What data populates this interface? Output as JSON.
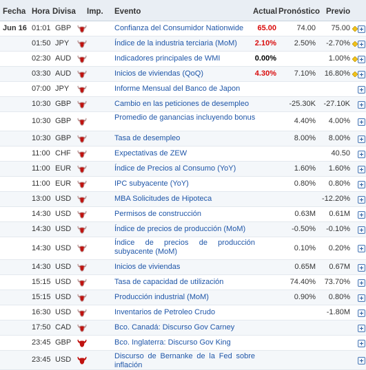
{
  "header": {
    "fecha": "Fecha",
    "hora": "Hora",
    "divisa": "Divisa",
    "imp": "Imp.",
    "evento": "Evento",
    "actual": "Actual",
    "pronostico": "Pronóstico",
    "previo": "Previo"
  },
  "colors": {
    "bull": "#c0120f",
    "bull_outline": "#bbbbbb",
    "header_bg": "#e9eef4",
    "alt_row": "#f4f7fa",
    "red_value": "#d90b0b",
    "link": "#1f56a8"
  },
  "rows": [
    {
      "date": "Jun 16",
      "time": "01:01",
      "cur": "GBP",
      "imp": 2,
      "event": "Confianza del Consumidor Nationwide",
      "actual": "65.00",
      "actual_color": "red",
      "forecast": "74.00",
      "previous": "75.00",
      "icons": [
        "diamond-icon",
        "expand-icon"
      ]
    },
    {
      "date": "",
      "time": "01:50",
      "cur": "JPY",
      "imp": 2,
      "event": "Índice de la industria terciaria (MoM)",
      "actual": "2.10%",
      "actual_color": "red",
      "forecast": "2.50%",
      "previous": "-2.70%",
      "icons": [
        "diamond-icon",
        "expand-icon"
      ]
    },
    {
      "date": "",
      "time": "02:30",
      "cur": "AUD",
      "imp": 2,
      "event": "Indicadores principales de WMI",
      "actual": "0.00%",
      "actual_color": "black",
      "forecast": "",
      "previous": "1.00%",
      "icons": [
        "diamond-icon",
        "expand-icon"
      ]
    },
    {
      "date": "",
      "time": "03:30",
      "cur": "AUD",
      "imp": 2,
      "event": "Inicios de viviendas (QoQ)",
      "actual": "4.30%",
      "actual_color": "red",
      "forecast": "7.10%",
      "previous": "16.80%",
      "icons": [
        "diamond-icon",
        "expand-icon"
      ]
    },
    {
      "date": "",
      "time": "07:00",
      "cur": "JPY",
      "imp": 2,
      "event": "Informe Mensual del Banco de Japon",
      "actual": "",
      "actual_color": "",
      "forecast": "",
      "previous": "",
      "icons": [
        "expand-icon"
      ]
    },
    {
      "date": "",
      "time": "10:30",
      "cur": "GBP",
      "imp": 2,
      "event": "Cambio en las peticiones de desempleo",
      "actual": "",
      "actual_color": "",
      "forecast": "-25.30K",
      "previous": "-27.10K",
      "icons": [
        "expand-icon"
      ]
    },
    {
      "date": "",
      "time": "10:30",
      "cur": "GBP",
      "imp": 2,
      "event": "Promedio de ganancias incluyendo bonus",
      "actual": "",
      "actual_color": "",
      "forecast": "4.40%",
      "previous": "4.00%",
      "icons": [
        "expand-icon"
      ],
      "tall": true
    },
    {
      "date": "",
      "time": "10:30",
      "cur": "GBP",
      "imp": 2,
      "event": "Tasa de desempleo",
      "actual": "",
      "actual_color": "",
      "forecast": "8.00%",
      "previous": "8.00%",
      "icons": [
        "expand-icon"
      ]
    },
    {
      "date": "",
      "time": "11:00",
      "cur": "CHF",
      "imp": 2,
      "event": "Expectativas de ZEW",
      "actual": "",
      "actual_color": "",
      "forecast": "",
      "previous": "40.50",
      "icons": [
        "expand-icon"
      ]
    },
    {
      "date": "",
      "time": "11:00",
      "cur": "EUR",
      "imp": 2,
      "event": "Índice de Precios al Consumo  (YoY)",
      "actual": "",
      "actual_color": "",
      "forecast": "1.60%",
      "previous": "1.60%",
      "icons": [
        "expand-icon"
      ]
    },
    {
      "date": "",
      "time": "11:00",
      "cur": "EUR",
      "imp": 2,
      "event": "IPC subyacente (YoY)",
      "actual": "",
      "actual_color": "",
      "forecast": "0.80%",
      "previous": "0.80%",
      "icons": [
        "expand-icon"
      ]
    },
    {
      "date": "",
      "time": "13:00",
      "cur": "USD",
      "imp": 2,
      "event": "MBA Solicitudes de Hipoteca",
      "actual": "",
      "actual_color": "",
      "forecast": "",
      "previous": "-12.20%",
      "icons": [
        "expand-icon"
      ]
    },
    {
      "date": "",
      "time": "14:30",
      "cur": "USD",
      "imp": 2,
      "event": "Permisos de construcción",
      "actual": "",
      "actual_color": "",
      "forecast": "0.63M",
      "previous": "0.61M",
      "icons": [
        "expand-icon"
      ]
    },
    {
      "date": "",
      "time": "14:30",
      "cur": "USD",
      "imp": 2,
      "event": "Índice de precios de producción  (MoM)",
      "actual": "",
      "actual_color": "",
      "forecast": "-0.50%",
      "previous": "-0.10%",
      "icons": [
        "expand-icon"
      ]
    },
    {
      "date": "",
      "time": "14:30",
      "cur": "USD",
      "imp": 2,
      "event": "Índice de precios de producción subyacente (MoM)",
      "actual": "",
      "actual_color": "",
      "forecast": "0.10%",
      "previous": "0.20%",
      "icons": [
        "expand-icon"
      ],
      "multi": true
    },
    {
      "date": "",
      "time": "14:30",
      "cur": "USD",
      "imp": 2,
      "event": "Inicios de viviendas",
      "actual": "",
      "actual_color": "",
      "forecast": "0.65M",
      "previous": "0.67M",
      "icons": [
        "expand-icon"
      ]
    },
    {
      "date": "",
      "time": "15:15",
      "cur": "USD",
      "imp": 2,
      "event": "Tasa de capacidad de utilización",
      "actual": "",
      "actual_color": "",
      "forecast": "74.40%",
      "previous": "73.70%",
      "icons": [
        "expand-icon"
      ]
    },
    {
      "date": "",
      "time": "15:15",
      "cur": "USD",
      "imp": 2,
      "event": "Producción industrial  (MoM)",
      "actual": "",
      "actual_color": "",
      "forecast": "0.90%",
      "previous": "0.80%",
      "icons": [
        "expand-icon"
      ]
    },
    {
      "date": "",
      "time": "16:30",
      "cur": "USD",
      "imp": 2,
      "event": "Inventarios de Petroleo Crudo",
      "actual": "",
      "actual_color": "",
      "forecast": "",
      "previous": "-1.80M",
      "icons": [
        "expand-icon"
      ]
    },
    {
      "date": "",
      "time": "17:50",
      "cur": "CAD",
      "imp": 2,
      "event": "Bco. Canadá: Discurso Gov Carney",
      "actual": "",
      "actual_color": "",
      "forecast": "",
      "previous": "",
      "icons": [
        "expand-icon"
      ]
    },
    {
      "date": "",
      "time": "23:45",
      "cur": "GBP",
      "imp": 3,
      "event": "Bco. Inglaterra: Discurso Gov King",
      "actual": "",
      "actual_color": "",
      "forecast": "",
      "previous": "",
      "icons": [
        "expand-icon"
      ]
    },
    {
      "date": "",
      "time": "23:45",
      "cur": "USD",
      "imp": 3,
      "event": "Discurso de Bernanke de la Fed sobre inflación",
      "actual": "",
      "actual_color": "",
      "forecast": "",
      "previous": "",
      "icons": [
        "expand-icon"
      ],
      "multi": true
    }
  ]
}
